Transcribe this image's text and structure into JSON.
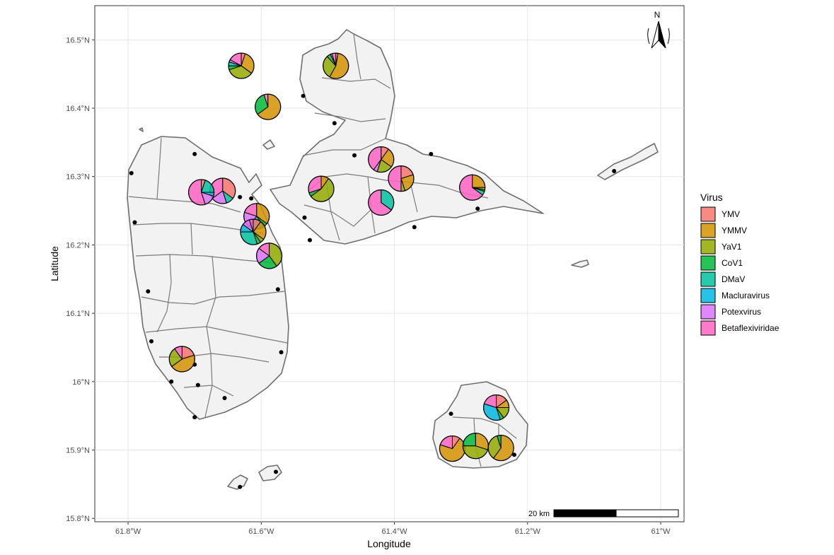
{
  "axes": {
    "xlabel": "Longitude",
    "ylabel": "Latitude",
    "xlim": [
      -61.85,
      -60.965
    ],
    "ylim": [
      15.795,
      16.55
    ],
    "x_ticks": [
      {
        "value": -61.8,
        "label": "61.8°W"
      },
      {
        "value": -61.6,
        "label": "61.6°W"
      },
      {
        "value": -61.4,
        "label": "61.4°W"
      },
      {
        "value": -61.2,
        "label": "61.2°W"
      },
      {
        "value": -61.0,
        "label": "61°W"
      }
    ],
    "y_ticks": [
      {
        "value": 15.8,
        "label": "15.8°N"
      },
      {
        "value": 15.9,
        "label": "15.9°N"
      },
      {
        "value": 16.0,
        "label": "16°N"
      },
      {
        "value": 16.1,
        "label": "16.1°N"
      },
      {
        "value": 16.2,
        "label": "16.2°N"
      },
      {
        "value": 16.3,
        "label": "16.3°N"
      },
      {
        "value": 16.4,
        "label": "16.4°N"
      },
      {
        "value": 16.5,
        "label": "16.5°N"
      }
    ],
    "grid": true
  },
  "legend": {
    "title": "Virus",
    "position": "right",
    "items": [
      {
        "label": "YMV",
        "color": "#F8766D"
      },
      {
        "label": "YMMV",
        "color": "#D39200"
      },
      {
        "label": "YaV1",
        "color": "#93AA00"
      },
      {
        "label": "CoV1",
        "color": "#00BA38"
      },
      {
        "label": "DMaV",
        "color": "#00C19F"
      },
      {
        "label": "Macluravirus",
        "color": "#00B9E3"
      },
      {
        "label": "Potexvirus",
        "color": "#DB72FB"
      },
      {
        "label": "Betaflexiviridae",
        "color": "#FF61C3"
      }
    ]
  },
  "scale_bar": {
    "label": "20 km"
  },
  "north_arrow": {
    "label": "N",
    "icon": "north-arrow-icon"
  },
  "chart_data": {
    "type": "map-pie",
    "sample_points": [
      [
        -61.795,
        16.305
      ],
      [
        -61.7,
        16.333
      ],
      [
        -61.79,
        16.233
      ],
      [
        -61.77,
        16.132
      ],
      [
        -61.765,
        16.059
      ],
      [
        -61.735,
        16.0
      ],
      [
        -61.7,
        16.025
      ],
      [
        -61.695,
        15.995
      ],
      [
        -61.7,
        15.948
      ],
      [
        -61.655,
        15.976
      ],
      [
        -61.57,
        16.043
      ],
      [
        -61.575,
        16.135
      ],
      [
        -61.632,
        16.27
      ],
      [
        -61.615,
        16.268
      ],
      [
        -61.535,
        16.24
      ],
      [
        -61.527,
        16.207
      ],
      [
        -61.49,
        16.378
      ],
      [
        -61.537,
        16.418
      ],
      [
        -61.46,
        16.331
      ],
      [
        -61.345,
        16.333
      ],
      [
        -61.37,
        16.226
      ],
      [
        -61.275,
        16.253
      ],
      [
        -61.07,
        16.308
      ],
      [
        -61.315,
        15.953
      ],
      [
        -61.22,
        15.893
      ],
      [
        -61.578,
        15.868
      ],
      [
        -61.632,
        15.846
      ]
    ],
    "pies": [
      {
        "lon": -61.63,
        "lat": 16.462,
        "values": [
          0.05,
          0.3,
          0.35,
          0.05,
          0.05,
          0.0,
          0.03,
          0.17
        ]
      },
      {
        "lon": -61.488,
        "lat": 16.462,
        "values": [
          0.03,
          0.55,
          0.3,
          0.05,
          0.0,
          0.0,
          0.02,
          0.05
        ]
      },
      {
        "lon": -61.59,
        "lat": 16.402,
        "values": [
          0.0,
          0.65,
          0.0,
          0.3,
          0.0,
          0.0,
          0.0,
          0.05
        ]
      },
      {
        "lon": -61.42,
        "lat": 16.325,
        "values": [
          0.1,
          0.25,
          0.2,
          0.0,
          0.0,
          0.0,
          0.05,
          0.4
        ]
      },
      {
        "lon": -61.39,
        "lat": 16.297,
        "values": [
          0.2,
          0.25,
          0.05,
          0.0,
          0.0,
          0.0,
          0.0,
          0.5
        ]
      },
      {
        "lon": -61.42,
        "lat": 16.262,
        "values": [
          0.0,
          0.0,
          0.0,
          0.0,
          0.35,
          0.0,
          0.0,
          0.65
        ]
      },
      {
        "lon": -61.283,
        "lat": 16.284,
        "values": [
          0.0,
          0.25,
          0.03,
          0.02,
          0.05,
          0.0,
          0.0,
          0.65
        ]
      },
      {
        "lon": -61.51,
        "lat": 16.282,
        "values": [
          0.0,
          0.1,
          0.55,
          0.05,
          0.0,
          0.0,
          0.0,
          0.3
        ]
      },
      {
        "lon": -61.658,
        "lat": 16.279,
        "values": [
          0.35,
          0.0,
          0.0,
          0.0,
          0.1,
          0.0,
          0.2,
          0.35
        ]
      },
      {
        "lon": -61.69,
        "lat": 16.277,
        "values": [
          0.05,
          0.0,
          0.0,
          0.0,
          0.2,
          0.05,
          0.15,
          0.55
        ]
      },
      {
        "lon": -61.607,
        "lat": 16.242,
        "values": [
          0.0,
          0.35,
          0.0,
          0.05,
          0.2,
          0.0,
          0.2,
          0.2
        ]
      },
      {
        "lon": -61.612,
        "lat": 16.219,
        "values": [
          0.1,
          0.25,
          0.05,
          0.05,
          0.3,
          0.1,
          0.1,
          0.05
        ]
      },
      {
        "lon": -61.588,
        "lat": 16.184,
        "values": [
          0.0,
          0.0,
          0.4,
          0.25,
          0.0,
          0.0,
          0.2,
          0.15
        ]
      },
      {
        "lon": -61.719,
        "lat": 16.033,
        "values": [
          0.2,
          0.45,
          0.25,
          0.0,
          0.0,
          0.0,
          0.0,
          0.1
        ]
      },
      {
        "lon": -61.247,
        "lat": 15.962,
        "values": [
          0.15,
          0.1,
          0.15,
          0.05,
          0.0,
          0.35,
          0.0,
          0.2
        ]
      },
      {
        "lon": -61.313,
        "lat": 15.902,
        "values": [
          0.1,
          0.7,
          0.0,
          0.0,
          0.0,
          0.0,
          0.0,
          0.2
        ]
      },
      {
        "lon": -61.278,
        "lat": 15.906,
        "values": [
          0.0,
          0.3,
          0.45,
          0.25,
          0.0,
          0.0,
          0.0,
          0.0
        ]
      },
      {
        "lon": -61.24,
        "lat": 15.903,
        "values": [
          0.0,
          0.6,
          0.35,
          0.05,
          0.0,
          0.0,
          0.0,
          0.0
        ]
      }
    ]
  }
}
